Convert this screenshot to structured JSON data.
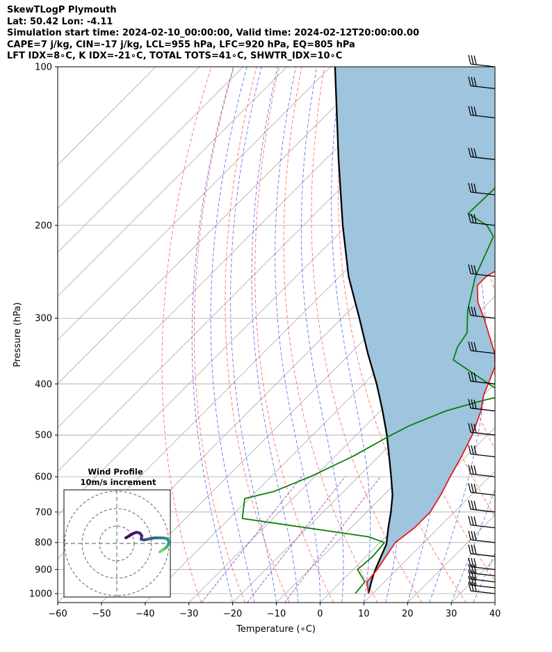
{
  "header": {
    "line1": "SkewTLogP Plymouth",
    "line2": "Lat: 50.42   Lon: -4.11",
    "line3": "Simulation start time: 2024-02-10_00:00:00, Valid time: 2024-02-12T20:00:00.00",
    "line4": "CAPE=7 j/kg, CIN=-17 j/kg, LCL=955 hPa, LFC=920 hPa, EQ=805 hPa",
    "line5": "LFT IDX=8∘C, K IDX=-21∘C, TOTAL TOTS=41∘C, SHWTR_IDX=10∘C"
  },
  "colors": {
    "temperature": "#e8191e",
    "dewpoint": "#0a7d0a",
    "parcel": "#000000",
    "cape_fill": "#9ec4de",
    "dry_adiabat": "#ff5555",
    "moist_adiabat": "#4b5cf0",
    "mixing_ratio": "#9b45c4",
    "isotherm": "#a8a8a8",
    "isobar": "#a8a8a8"
  },
  "chart_data": {
    "type": "line",
    "subtype": "skew-t log-p",
    "xlabel": "Temperature (∘C)",
    "ylabel": "Pressure (hPa)",
    "xlim": [
      -60,
      40
    ],
    "ylim": [
      1040,
      100
    ],
    "y_scale": "log",
    "x_ticks": [
      -60,
      -50,
      -40,
      -30,
      -20,
      -10,
      0,
      10,
      20,
      30,
      40
    ],
    "x_tick_labels": [
      "−60",
      "−50",
      "−40",
      "−30",
      "−20",
      "−10",
      "0",
      "10",
      "20",
      "30",
      "40"
    ],
    "y_ticks": [
      1000,
      900,
      800,
      700,
      600,
      500,
      400,
      300,
      200,
      100
    ],
    "y_tick_labels": [
      "1000",
      "900",
      "800",
      "700",
      "600",
      "500",
      "400",
      "300",
      "200",
      "100"
    ],
    "grid": true,
    "series": [
      {
        "id": "temperature",
        "points": [
          [
            1000,
            9
          ],
          [
            950,
            6
          ],
          [
            900,
            5.5
          ],
          [
            850,
            4.5
          ],
          [
            800,
            3.5
          ],
          [
            750,
            4.5
          ],
          [
            700,
            4.5
          ],
          [
            650,
            3
          ],
          [
            600,
            1
          ],
          [
            550,
            -1
          ],
          [
            500,
            -3.5
          ],
          [
            450,
            -7
          ],
          [
            420,
            -10
          ],
          [
            400,
            -11.5
          ],
          [
            370,
            -14
          ],
          [
            350,
            -17
          ],
          [
            330,
            -21
          ],
          [
            300,
            -27.5
          ],
          [
            280,
            -32.5
          ],
          [
            260,
            -36.5
          ],
          [
            250,
            -36.5
          ],
          [
            240,
            -35
          ],
          [
            220,
            -35.5
          ],
          [
            200,
            -37
          ],
          [
            170,
            -41
          ],
          [
            150,
            -43
          ],
          [
            130,
            -45
          ],
          [
            110,
            -46
          ],
          [
            100,
            -46
          ]
        ]
      },
      {
        "id": "dewpoint",
        "points": [
          [
            1000,
            6
          ],
          [
            950,
            5.5
          ],
          [
            900,
            1
          ],
          [
            850,
            1.5
          ],
          [
            800,
            1
          ],
          [
            780,
            -4
          ],
          [
            720,
            -37
          ],
          [
            660,
            -41
          ],
          [
            640,
            -36
          ],
          [
            600,
            -31
          ],
          [
            550,
            -26
          ],
          [
            500,
            -22
          ],
          [
            480,
            -20
          ],
          [
            450,
            -15
          ],
          [
            430,
            -9
          ],
          [
            420,
            -5
          ],
          [
            360,
            -25
          ],
          [
            340,
            -27
          ],
          [
            320,
            -28
          ],
          [
            290,
            -33
          ],
          [
            250,
            -39
          ],
          [
            210,
            -44
          ],
          [
            200,
            -48
          ],
          [
            190,
            -55
          ],
          [
            130,
            -54
          ],
          [
            110,
            -53
          ],
          [
            100,
            -52
          ]
        ]
      },
      {
        "id": "parcel",
        "points": [
          [
            1000,
            9
          ],
          [
            955,
            7.2
          ],
          [
            920,
            5.8
          ],
          [
            900,
            5.1
          ],
          [
            850,
            3.4
          ],
          [
            805,
            1.8
          ],
          [
            750,
            -1.5
          ],
          [
            700,
            -4.5
          ],
          [
            650,
            -8
          ],
          [
            600,
            -12.5
          ],
          [
            550,
            -17.5
          ],
          [
            500,
            -23
          ],
          [
            450,
            -29.5
          ],
          [
            400,
            -37
          ],
          [
            350,
            -46
          ],
          [
            300,
            -56
          ],
          [
            250,
            -68
          ],
          [
            200,
            -81
          ],
          [
            150,
            -97
          ],
          [
            100,
            -119
          ]
        ]
      }
    ],
    "wind_barbs": {
      "pressures": [
        1000,
        975,
        950,
        925,
        900,
        850,
        800,
        750,
        700,
        650,
        600,
        550,
        500,
        450,
        400,
        350,
        300,
        250,
        200,
        175,
        150,
        125,
        110,
        100
      ]
    },
    "inset": {
      "title": "Wind Profile",
      "subtitle": "10m/s increment",
      "rings_ms": [
        10,
        20,
        30
      ]
    }
  }
}
